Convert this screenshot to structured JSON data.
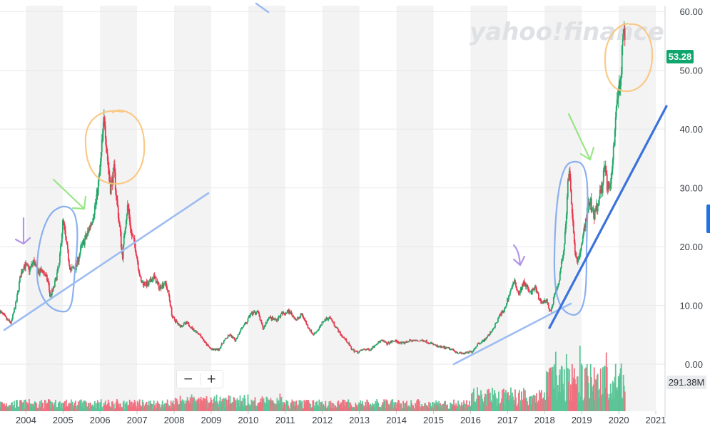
{
  "watermark": "yahoo!finance",
  "last_price_label": "53.28",
  "volume_label": "291.38M",
  "zoom_controls": {
    "zoom_out_label": "−",
    "zoom_in_label": "+"
  },
  "colors": {
    "up": "#26a96c",
    "down": "#e8384f",
    "price_badge": "#0ea66d",
    "volume_badge": "#e9ebed",
    "band": "#f3f3f3",
    "orange_annotation": "#f9c47a",
    "blue_annotation": "#7fa8ee",
    "green_annotation": "#8fe27a",
    "purple_annotation": "#a98ae8",
    "trendline": "#3c72dc"
  },
  "chart_data": {
    "type": "candlestick",
    "title": "",
    "xlabel": "",
    "ylabel": "",
    "x_ticks": [
      "2004",
      "2005",
      "2006",
      "2007",
      "2008",
      "2009",
      "2010",
      "2011",
      "2012",
      "2013",
      "2014",
      "2015",
      "2016",
      "2017",
      "2018",
      "2019",
      "2020",
      "2021"
    ],
    "y_ticks": [
      "0.00",
      "10.00",
      "20.00",
      "30.00",
      "40.00",
      "50.00",
      "60.00"
    ],
    "ylim": [
      -8,
      61
    ],
    "xlim": [
      2003.3,
      2021.25
    ],
    "grid": true,
    "last_price": 53.28,
    "last_volume": "291.38M",
    "price_path": [
      [
        2003.3,
        9
      ],
      [
        2003.5,
        7.5
      ],
      [
        2003.6,
        7
      ],
      [
        2003.75,
        11
      ],
      [
        2003.85,
        15
      ],
      [
        2003.95,
        17
      ],
      [
        2004.1,
        16
      ],
      [
        2004.2,
        17.5
      ],
      [
        2004.35,
        15.5
      ],
      [
        2004.45,
        16
      ],
      [
        2004.6,
        14
      ],
      [
        2004.65,
        11.5
      ],
      [
        2004.75,
        13
      ],
      [
        2004.9,
        17
      ],
      [
        2004.95,
        21
      ],
      [
        2005.0,
        24.5
      ],
      [
        2005.1,
        20
      ],
      [
        2005.2,
        16
      ],
      [
        2005.35,
        16.5
      ],
      [
        2005.5,
        20
      ],
      [
        2005.65,
        22
      ],
      [
        2005.8,
        25
      ],
      [
        2005.9,
        28
      ],
      [
        2006.0,
        33
      ],
      [
        2006.07,
        39
      ],
      [
        2006.12,
        42
      ],
      [
        2006.2,
        35
      ],
      [
        2006.28,
        30
      ],
      [
        2006.38,
        33
      ],
      [
        2006.45,
        28
      ],
      [
        2006.55,
        22
      ],
      [
        2006.6,
        18
      ],
      [
        2006.7,
        25
      ],
      [
        2006.75,
        27
      ],
      [
        2006.85,
        22
      ],
      [
        2006.95,
        20
      ],
      [
        2007.1,
        14
      ],
      [
        2007.3,
        13.5
      ],
      [
        2007.45,
        15
      ],
      [
        2007.6,
        13
      ],
      [
        2007.75,
        14
      ],
      [
        2007.85,
        12
      ],
      [
        2007.95,
        8
      ],
      [
        2008.15,
        6.5
      ],
      [
        2008.35,
        7
      ],
      [
        2008.5,
        6
      ],
      [
        2008.7,
        5
      ],
      [
        2008.85,
        3.5
      ],
      [
        2009.0,
        2.5
      ],
      [
        2009.2,
        2.5
      ],
      [
        2009.35,
        4
      ],
      [
        2009.5,
        5
      ],
      [
        2009.65,
        4
      ],
      [
        2009.8,
        6
      ],
      [
        2009.95,
        7
      ],
      [
        2010.05,
        8.5
      ],
      [
        2010.25,
        9
      ],
      [
        2010.4,
        6
      ],
      [
        2010.55,
        8
      ],
      [
        2010.75,
        7.5
      ],
      [
        2010.9,
        8.5
      ],
      [
        2011.1,
        9
      ],
      [
        2011.3,
        7.5
      ],
      [
        2011.45,
        8.5
      ],
      [
        2011.6,
        6.5
      ],
      [
        2011.75,
        5
      ],
      [
        2011.9,
        6
      ],
      [
        2012.05,
        7.5
      ],
      [
        2012.2,
        8
      ],
      [
        2012.35,
        6.5
      ],
      [
        2012.5,
        5
      ],
      [
        2012.65,
        4
      ],
      [
        2012.8,
        2.5
      ],
      [
        2012.95,
        2
      ],
      [
        2013.1,
        2.5
      ],
      [
        2013.3,
        2.5
      ],
      [
        2013.45,
        3.5
      ],
      [
        2013.6,
        4
      ],
      [
        2013.75,
        3.5
      ],
      [
        2013.95,
        4
      ],
      [
        2014.15,
        3.5
      ],
      [
        2014.35,
        4
      ],
      [
        2014.55,
        4
      ],
      [
        2014.75,
        4
      ],
      [
        2014.95,
        3.5
      ],
      [
        2015.1,
        3
      ],
      [
        2015.3,
        2.8
      ],
      [
        2015.5,
        2.5
      ],
      [
        2015.65,
        2
      ],
      [
        2015.8,
        1.8
      ],
      [
        2015.95,
        2
      ],
      [
        2016.05,
        2.2
      ],
      [
        2016.2,
        3.5
      ],
      [
        2016.35,
        4
      ],
      [
        2016.5,
        5
      ],
      [
        2016.6,
        6
      ],
      [
        2016.7,
        7
      ],
      [
        2016.8,
        8.5
      ],
      [
        2016.9,
        9
      ],
      [
        2017.0,
        11
      ],
      [
        2017.1,
        13
      ],
      [
        2017.2,
        14
      ],
      [
        2017.3,
        12
      ],
      [
        2017.45,
        14
      ],
      [
        2017.6,
        12
      ],
      [
        2017.75,
        13
      ],
      [
        2017.85,
        11
      ],
      [
        2017.95,
        10.5
      ],
      [
        2018.05,
        11
      ],
      [
        2018.15,
        9
      ],
      [
        2018.2,
        10
      ],
      [
        2018.28,
        12
      ],
      [
        2018.38,
        14
      ],
      [
        2018.45,
        17
      ],
      [
        2018.52,
        19
      ],
      [
        2018.57,
        24
      ],
      [
        2018.62,
        30
      ],
      [
        2018.66,
        33
      ],
      [
        2018.72,
        28
      ],
      [
        2018.8,
        20
      ],
      [
        2018.88,
        17
      ],
      [
        2018.95,
        19
      ],
      [
        2019.05,
        22
      ],
      [
        2019.15,
        26
      ],
      [
        2019.22,
        28
      ],
      [
        2019.32,
        25
      ],
      [
        2019.42,
        27
      ],
      [
        2019.55,
        30
      ],
      [
        2019.6,
        34
      ],
      [
        2019.7,
        30
      ],
      [
        2019.8,
        32
      ],
      [
        2019.88,
        38
      ],
      [
        2019.95,
        45
      ],
      [
        2020.0,
        49
      ],
      [
        2020.05,
        47.5
      ],
      [
        2020.1,
        54
      ],
      [
        2020.14,
        56
      ],
      [
        2020.17,
        53.28
      ]
    ]
  }
}
